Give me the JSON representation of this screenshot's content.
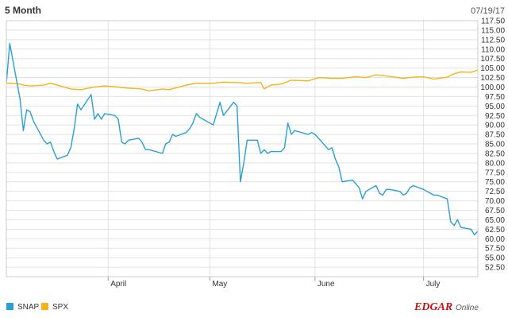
{
  "header": {
    "period_label": "5 Month",
    "as_of_date": "07/19/17"
  },
  "brand": {
    "logo_main": "EDGAR",
    "logo_sub": "Online"
  },
  "colors": {
    "SNAP": "#2a9fd6",
    "SPX": "#f7b21a",
    "grid": "#e2e2e2",
    "frame": "#cccccc"
  },
  "chart_data": {
    "type": "line",
    "title": "",
    "xlabel": "",
    "ylabel": "",
    "x_range": [
      "2017-03-02",
      "2017-07-19"
    ],
    "ylim": [
      50,
      117.5
    ],
    "y_ticks": [
      "117.50",
      "115.00",
      "112.50",
      "110.00",
      "107.50",
      "105.00",
      "102.50",
      "100.00",
      "97.50",
      "95.00",
      "92.50",
      "90.00",
      "87.50",
      "85.00",
      "82.50",
      "80.00",
      "77.50",
      "75.00",
      "72.50",
      "70.00",
      "67.50",
      "65.00",
      "62.50",
      "60.00",
      "57.50",
      "55.00",
      "52.50"
    ],
    "x_ticks": [
      {
        "label": "April",
        "date": "2017-04-01"
      },
      {
        "label": "May",
        "date": "2017-05-01"
      },
      {
        "label": "June",
        "date": "2017-06-01"
      },
      {
        "label": "July",
        "date": "2017-07-03"
      }
    ],
    "grid": true,
    "legend": "bottom-left",
    "series": [
      {
        "name": "SNAP",
        "points": [
          [
            "2017-03-02",
            101
          ],
          [
            "2017-03-03",
            111.5
          ],
          [
            "2017-03-06",
            97
          ],
          [
            "2017-03-07",
            88.5
          ],
          [
            "2017-03-08",
            94
          ],
          [
            "2017-03-09",
            93.5
          ],
          [
            "2017-03-10",
            91
          ],
          [
            "2017-03-13",
            86
          ],
          [
            "2017-03-14",
            85
          ],
          [
            "2017-03-15",
            85.5
          ],
          [
            "2017-03-16",
            83
          ],
          [
            "2017-03-17",
            81
          ],
          [
            "2017-03-20",
            82
          ],
          [
            "2017-03-21",
            84
          ],
          [
            "2017-03-22",
            89
          ],
          [
            "2017-03-23",
            95.5
          ],
          [
            "2017-03-24",
            94
          ],
          [
            "2017-03-27",
            98
          ],
          [
            "2017-03-28",
            91.5
          ],
          [
            "2017-03-29",
            93
          ],
          [
            "2017-03-30",
            91.5
          ],
          [
            "2017-03-31",
            93
          ],
          [
            "2017-04-03",
            92.5
          ],
          [
            "2017-04-04",
            91.5
          ],
          [
            "2017-04-05",
            85.5
          ],
          [
            "2017-04-06",
            85
          ],
          [
            "2017-04-07",
            86
          ],
          [
            "2017-04-10",
            86.5
          ],
          [
            "2017-04-11",
            85.5
          ],
          [
            "2017-04-12",
            83.5
          ],
          [
            "2017-04-13",
            83.5
          ],
          [
            "2017-04-17",
            82.5
          ],
          [
            "2017-04-18",
            85
          ],
          [
            "2017-04-19",
            85.5
          ],
          [
            "2017-04-20",
            87.5
          ],
          [
            "2017-04-21",
            87
          ],
          [
            "2017-04-24",
            88
          ],
          [
            "2017-04-25",
            89
          ],
          [
            "2017-04-26",
            90.5
          ],
          [
            "2017-04-27",
            93
          ],
          [
            "2017-04-28",
            92
          ],
          [
            "2017-05-01",
            90.5
          ],
          [
            "2017-05-02",
            90
          ],
          [
            "2017-05-03",
            93
          ],
          [
            "2017-05-04",
            96
          ],
          [
            "2017-05-05",
            92.5
          ],
          [
            "2017-05-08",
            96
          ],
          [
            "2017-05-09",
            95
          ],
          [
            "2017-05-10",
            75
          ],
          [
            "2017-05-11",
            80
          ],
          [
            "2017-05-12",
            86
          ],
          [
            "2017-05-15",
            86
          ],
          [
            "2017-05-16",
            82.5
          ],
          [
            "2017-05-17",
            83.5
          ],
          [
            "2017-05-18",
            82.5
          ],
          [
            "2017-05-19",
            83
          ],
          [
            "2017-05-22",
            83
          ],
          [
            "2017-05-23",
            84
          ],
          [
            "2017-05-24",
            90.5
          ],
          [
            "2017-05-25",
            87.5
          ],
          [
            "2017-05-26",
            88.5
          ],
          [
            "2017-05-30",
            87.5
          ],
          [
            "2017-05-31",
            88
          ],
          [
            "2017-06-01",
            87.5
          ],
          [
            "2017-06-02",
            86.5
          ],
          [
            "2017-06-05",
            83.5
          ],
          [
            "2017-06-06",
            84
          ],
          [
            "2017-06-07",
            81
          ],
          [
            "2017-06-08",
            79
          ],
          [
            "2017-06-09",
            75
          ],
          [
            "2017-06-12",
            75.5
          ],
          [
            "2017-06-13",
            74.5
          ],
          [
            "2017-06-14",
            73.5
          ],
          [
            "2017-06-15",
            70.5
          ],
          [
            "2017-06-16",
            72.5
          ],
          [
            "2017-06-19",
            74
          ],
          [
            "2017-06-20",
            72
          ],
          [
            "2017-06-21",
            71.5
          ],
          [
            "2017-06-22",
            73
          ],
          [
            "2017-06-23",
            73
          ],
          [
            "2017-06-26",
            72.5
          ],
          [
            "2017-06-27",
            71.5
          ],
          [
            "2017-06-28",
            72
          ],
          [
            "2017-06-29",
            73.5
          ],
          [
            "2017-06-30",
            74
          ],
          [
            "2017-07-03",
            73
          ],
          [
            "2017-07-05",
            72
          ],
          [
            "2017-07-06",
            71.5
          ],
          [
            "2017-07-07",
            71.5
          ],
          [
            "2017-07-10",
            70.5
          ],
          [
            "2017-07-11",
            64.5
          ],
          [
            "2017-07-12",
            63.5
          ],
          [
            "2017-07-13",
            65
          ],
          [
            "2017-07-14",
            63
          ],
          [
            "2017-07-17",
            62.5
          ],
          [
            "2017-07-18",
            61
          ],
          [
            "2017-07-19",
            62
          ]
        ]
      },
      {
        "name": "SPX",
        "points": [
          [
            "2017-03-02",
            101
          ],
          [
            "2017-03-03",
            101
          ],
          [
            "2017-03-06",
            100.8
          ],
          [
            "2017-03-07",
            100.5
          ],
          [
            "2017-03-09",
            100.3
          ],
          [
            "2017-03-13",
            100.5
          ],
          [
            "2017-03-15",
            101
          ],
          [
            "2017-03-17",
            100.5
          ],
          [
            "2017-03-21",
            99.5
          ],
          [
            "2017-03-24",
            99.3
          ],
          [
            "2017-03-28",
            100
          ],
          [
            "2017-03-31",
            100.3
          ],
          [
            "2017-04-04",
            100
          ],
          [
            "2017-04-07",
            99.7
          ],
          [
            "2017-04-11",
            99.5
          ],
          [
            "2017-04-13",
            99
          ],
          [
            "2017-04-17",
            99.5
          ],
          [
            "2017-04-19",
            99.3
          ],
          [
            "2017-04-24",
            100.5
          ],
          [
            "2017-04-27",
            101
          ],
          [
            "2017-05-02",
            101
          ],
          [
            "2017-05-05",
            101.3
          ],
          [
            "2017-05-09",
            101.2
          ],
          [
            "2017-05-12",
            101
          ],
          [
            "2017-05-16",
            101.2
          ],
          [
            "2017-05-17",
            99.5
          ],
          [
            "2017-05-19",
            100.5
          ],
          [
            "2017-05-22",
            100.8
          ],
          [
            "2017-05-25",
            101.8
          ],
          [
            "2017-05-30",
            101.6
          ],
          [
            "2017-06-02",
            102.5
          ],
          [
            "2017-06-06",
            102.3
          ],
          [
            "2017-06-09",
            102.3
          ],
          [
            "2017-06-13",
            102.7
          ],
          [
            "2017-06-16",
            102.5
          ],
          [
            "2017-06-19",
            103.2
          ],
          [
            "2017-06-22",
            102.9
          ],
          [
            "2017-06-27",
            102.3
          ],
          [
            "2017-06-30",
            102.6
          ],
          [
            "2017-07-03",
            102.7
          ],
          [
            "2017-07-06",
            102.1
          ],
          [
            "2017-07-10",
            102.6
          ],
          [
            "2017-07-12",
            103.5
          ],
          [
            "2017-07-14",
            104
          ],
          [
            "2017-07-17",
            103.9
          ],
          [
            "2017-07-19",
            104.5
          ]
        ]
      }
    ]
  }
}
